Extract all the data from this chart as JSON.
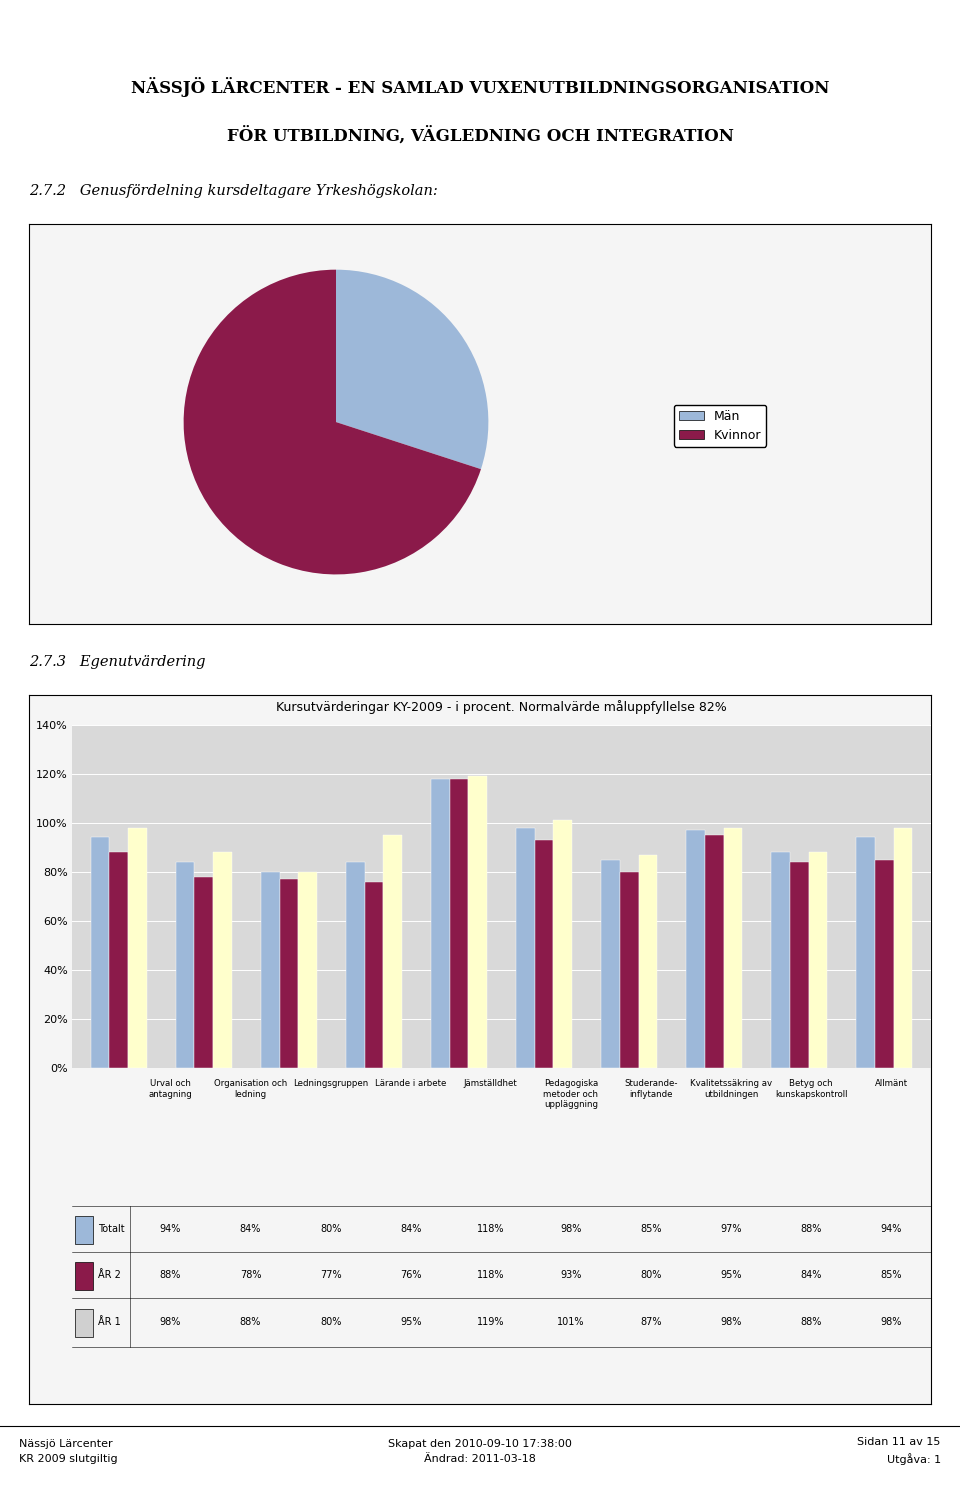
{
  "title_bold": "NÄSSJÖ LÄRCENTER",
  "title_line1_rest": " - EN SAMLAD VUXENUTBILDNINGSORGANISATION",
  "title_line2": "FÖR UTBILDNING, VÄGLEDNING OCH INTEGRATION",
  "section_272": "2.7.2   Genusfördelning kursdeltagare Yrkeshögskolan:",
  "section_273": "2.7.3   Egenutvärdering",
  "pie_values": [
    30,
    70
  ],
  "pie_colors": [
    "#9db8d9",
    "#8b1a4a"
  ],
  "pie_labels": [
    "Män",
    "Kvinnor"
  ],
  "bar_title": "Kursutvärderingar KY-2009 - i procent. Normalvärde måluppfyllelse 82%",
  "categories": [
    "Urval och\nantagning",
    "Organisation och\nledning",
    "Ledningsgruppen",
    "Lärande i arbete",
    "Jämställdhet",
    "Pedagogiska\nmetoder och\nuppläggning",
    "Studerande-\ninflytande",
    "Kvalitetssäkring av\nutbildningen",
    "Betyg och\nkunskapskontroll",
    "Allmänt"
  ],
  "series_names": [
    "Totalt",
    "ÅR 2",
    "ÅR 1"
  ],
  "series_values": {
    "Totalt": [
      94,
      84,
      80,
      84,
      118,
      98,
      85,
      97,
      88,
      94
    ],
    "ÅR 2": [
      88,
      78,
      77,
      76,
      118,
      93,
      80,
      95,
      84,
      85
    ],
    "ÅR 1": [
      98,
      88,
      80,
      95,
      119,
      101,
      87,
      98,
      88,
      98
    ]
  },
  "bar_colors": {
    "Totalt": "#9db8d9",
    "ÅR 2": "#8b1a4a",
    "ÅR 1": "#ffffcc"
  },
  "table_square_colors": {
    "Totalt": "#9db8d9",
    "ÅR 2": "#8b1a4a",
    "ÅR 1": "#d0d0d0"
  },
  "ylim": [
    0,
    140
  ],
  "yticks": [
    0,
    20,
    40,
    60,
    80,
    100,
    120,
    140
  ],
  "ytick_labels": [
    "0%",
    "20%",
    "40%",
    "60%",
    "80%",
    "100%",
    "120%",
    "140%"
  ],
  "header_bar_color": "#1f3864",
  "footer_left": "Nässjö Lärcenter\nKR 2009 slutgiltig",
  "footer_center": "Skapat den 2010-09-10 17:38:00\nÄndrad: 2011-03-18",
  "footer_right": "Sidan 11 av 15\nUtgåva: 1",
  "bg_color": "#ffffff",
  "chart_bg": "#d9d9d9",
  "box_bg": "#f5f5f5"
}
